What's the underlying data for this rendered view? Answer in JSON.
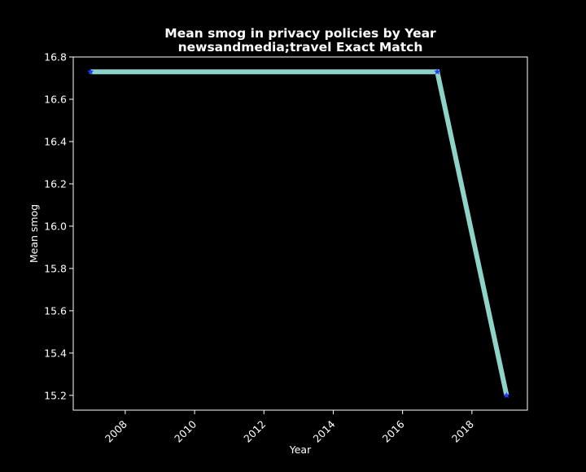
{
  "chart_data": {
    "type": "line",
    "title": "Mean smog in privacy policies by Year",
    "subtitle": "newsandmedia;travel Exact Match",
    "xlabel": "Year",
    "ylabel": "Mean smog",
    "x": [
      2007,
      2017,
      2019
    ],
    "series": [
      {
        "values": [
          16.73,
          16.73,
          15.2
        ]
      }
    ],
    "xlim": [
      2006.5,
      2019.6
    ],
    "ylim": [
      15.13,
      16.8
    ],
    "xticks": [
      2008,
      2010,
      2012,
      2014,
      2016,
      2018
    ],
    "yticks": [
      15.2,
      15.4,
      15.6,
      15.8,
      16.0,
      16.2,
      16.4,
      16.6,
      16.8
    ],
    "xtick_labels": [
      "2008",
      "2010",
      "2012",
      "2014",
      "2016",
      "2018"
    ],
    "ytick_labels": [
      "15.2",
      "15.4",
      "15.6",
      "15.8",
      "16.0",
      "16.2",
      "16.4",
      "16.6",
      "16.8"
    ],
    "grid": false,
    "legend": "none",
    "marker": "star",
    "colors": {
      "background": "#000000",
      "line": "#8dd3c7",
      "marker": "#1f3bff",
      "axes": "#ffffff",
      "text": "#ffffff"
    }
  }
}
